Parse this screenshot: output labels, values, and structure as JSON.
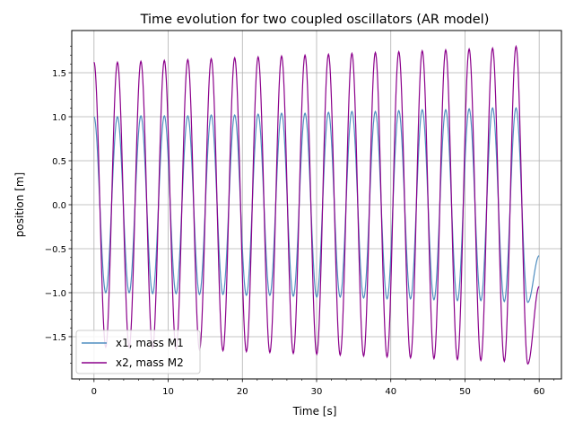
{
  "chart_data": {
    "type": "line",
    "title": "Time evolution for two coupled oscillators (AR model)",
    "xlabel": "Time [s]",
    "ylabel": "position [m]",
    "xlim": [
      -3,
      63
    ],
    "ylim": [
      -1.98,
      1.98
    ],
    "x_ticks": [
      0,
      10,
      20,
      30,
      40,
      50,
      60
    ],
    "x_tick_labels": [
      "0",
      "10",
      "20",
      "30",
      "40",
      "50",
      "60"
    ],
    "y_ticks": [
      -1.5,
      -1.0,
      -0.5,
      0.0,
      0.5,
      1.0,
      1.5
    ],
    "y_tick_labels": [
      "−1.5",
      "−1.0",
      "−0.5",
      "0.0",
      "0.5",
      "1.0",
      "1.5"
    ],
    "grid": true,
    "legend_position": "lower-left",
    "series": [
      {
        "name": "x1, mass M1",
        "color": "#4f8ec0",
        "x": [
          0.0,
          1.58,
          3.16,
          4.74,
          6.32,
          7.9,
          9.48,
          11.06,
          12.64,
          14.22,
          15.8,
          17.38,
          18.96,
          20.54,
          22.12,
          23.7,
          25.28,
          26.86,
          28.44,
          30.02,
          31.6,
          33.18,
          34.76,
          36.34,
          37.92,
          39.5,
          41.08,
          42.66,
          44.24,
          45.82,
          47.4,
          48.98,
          50.56,
          52.14,
          53.72,
          55.3,
          56.88,
          58.46,
          60.0
        ],
        "values": [
          1.0,
          -1.0,
          1.0,
          -1.0,
          1.01,
          -1.01,
          1.01,
          -1.01,
          1.01,
          -1.02,
          1.02,
          -1.02,
          1.02,
          -1.03,
          1.03,
          -1.03,
          1.04,
          -1.04,
          1.04,
          -1.05,
          1.05,
          -1.05,
          1.06,
          -1.06,
          1.06,
          -1.07,
          1.07,
          -1.07,
          1.08,
          -1.08,
          1.08,
          -1.09,
          1.09,
          -1.09,
          1.1,
          -1.1,
          1.1,
          -1.11,
          -0.58
        ]
      },
      {
        "name": "x2, mass M2",
        "color": "#8b008b",
        "x": [
          0.0,
          1.58,
          3.16,
          4.74,
          6.32,
          7.9,
          9.48,
          11.06,
          12.64,
          14.22,
          15.8,
          17.38,
          18.96,
          20.54,
          22.12,
          23.7,
          25.28,
          26.86,
          28.44,
          30.02,
          31.6,
          33.18,
          34.76,
          36.34,
          37.92,
          39.5,
          41.08,
          42.66,
          44.24,
          45.82,
          47.4,
          48.98,
          50.56,
          52.14,
          53.72,
          55.3,
          56.88,
          58.46,
          60.0
        ],
        "values": [
          1.62,
          -1.62,
          1.62,
          -1.62,
          1.63,
          -1.63,
          1.64,
          -1.64,
          1.65,
          -1.65,
          1.66,
          -1.66,
          1.67,
          -1.67,
          1.68,
          -1.68,
          1.69,
          -1.69,
          1.7,
          -1.7,
          1.71,
          -1.71,
          1.72,
          -1.72,
          1.73,
          -1.73,
          1.74,
          -1.74,
          1.75,
          -1.75,
          1.76,
          -1.76,
          1.77,
          -1.77,
          1.78,
          -1.78,
          1.8,
          -1.81,
          -0.93
        ]
      }
    ]
  }
}
